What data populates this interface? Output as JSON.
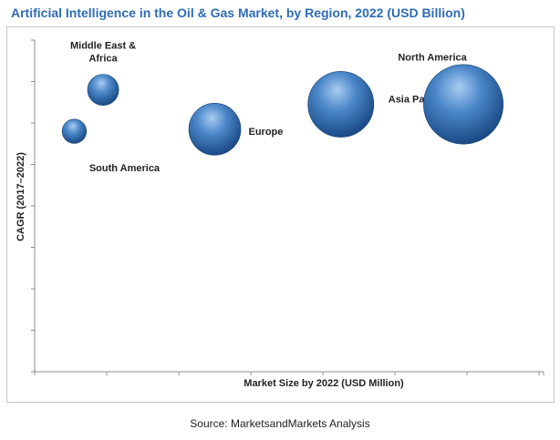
{
  "chart_data": {
    "type": "bubble",
    "title": "Artificial Intelligence in the Oil & Gas Market, by Region, 2022 (USD Billion)",
    "xlabel": "Market Size by 2022 (USD Million)",
    "ylabel": "CAGR (2017–2022)",
    "grid": false,
    "legend": "none",
    "xlim": [
      0,
      7
    ],
    "ylim": [
      0,
      8
    ],
    "series": [
      {
        "name": "Middle East & Africa",
        "x": 0.95,
        "y": 6.8,
        "size": 0.45
      },
      {
        "name": "South America",
        "x": 0.55,
        "y": 5.8,
        "size": 0.35
      },
      {
        "name": "Europe",
        "x": 2.5,
        "y": 5.85,
        "size": 0.75
      },
      {
        "name": "Asia Pacific",
        "x": 4.25,
        "y": 6.45,
        "size": 0.95
      },
      {
        "name": "North America",
        "x": 5.95,
        "y": 6.45,
        "size": 1.15
      }
    ]
  },
  "source_note": "Source: MarketsandMarkets Analysis",
  "colors": {
    "title": "#2e6cb5",
    "bubble_light": "#a9cdf2",
    "bubble_mid": "#4a86c8",
    "bubble_dark": "#1b4a86",
    "axis": "#8c8c8c"
  }
}
